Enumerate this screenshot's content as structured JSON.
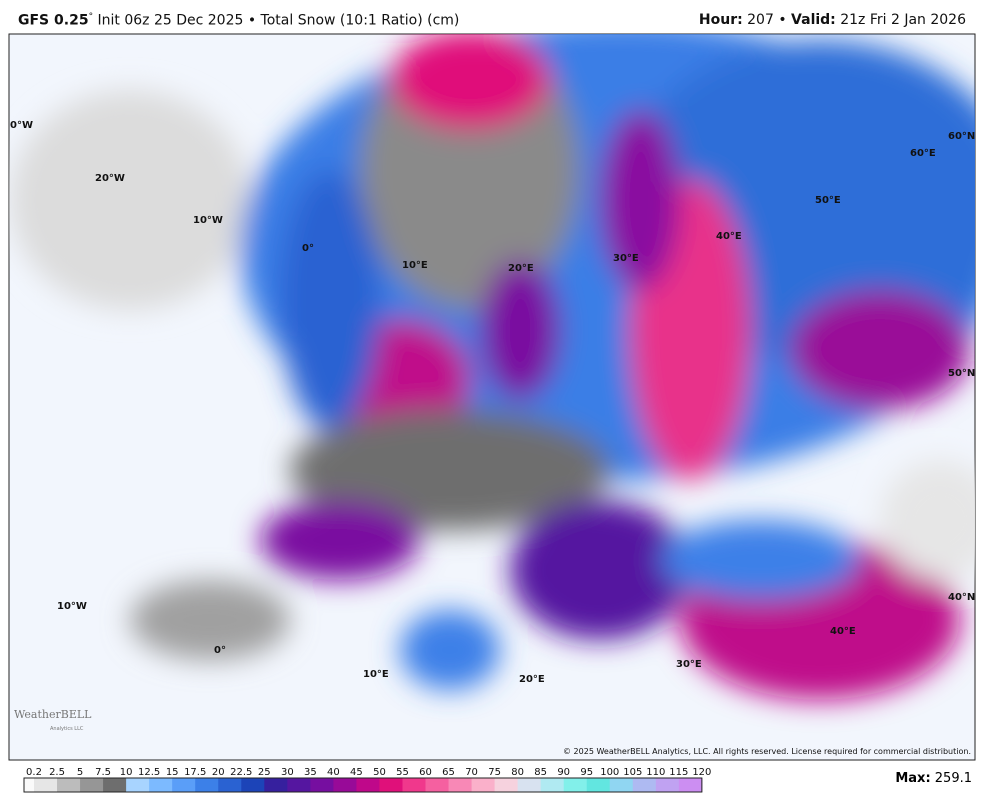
{
  "header": {
    "model": "GFS 0.25",
    "degree": "°",
    "description": " Init 06z 25 Dec 2025 • Total Snow (10:1 Ratio) (cm)",
    "hour_label": "Hour:",
    "hour_value": " 207 • ",
    "valid_label": "Valid:",
    "valid_value": " 21z Fri 2 Jan 2026"
  },
  "map": {
    "grid_labels": [
      "0°W",
      "20°W",
      "10°W",
      "0°",
      "10°E",
      "20°E",
      "30°E",
      "40°E",
      "50°E",
      "60°E",
      "60°N",
      "50°N",
      "40°N",
      "40°E",
      "30°E",
      "20°E",
      "10°E",
      "0°",
      "10°W"
    ],
    "logo": "WeatherBELL",
    "logo_sub": "Analytics LLC",
    "copyright": "© 2025 WeatherBELL Analytics, LLC. All rights reserved. License required for commercial distribution."
  },
  "colorbar": {
    "labels": [
      "0.2",
      "2.5",
      "5",
      "7.5",
      "10",
      "12.5",
      "15",
      "17.5",
      "20",
      "22.5",
      "25",
      "30",
      "35",
      "40",
      "45",
      "50",
      "55",
      "60",
      "65",
      "70",
      "75",
      "80",
      "85",
      "90",
      "95",
      "100",
      "105",
      "110",
      "115",
      "120"
    ],
    "colors": [
      "#e6e6e6",
      "#bcbcbc",
      "#969696",
      "#6e6e6e",
      "#a8d4ff",
      "#7cbaff",
      "#5a9ef8",
      "#3c80e8",
      "#2a62d2",
      "#1c44b8",
      "#36209e",
      "#5516a0",
      "#760ea0",
      "#980a98",
      "#bf088a",
      "#e0107a",
      "#f0388c",
      "#f560a0",
      "#f888b6",
      "#fab0ca",
      "#f6d2de",
      "#d8e2f0",
      "#b0eaf2",
      "#82f0ea",
      "#62e6e0",
      "#90d6f2",
      "#aebaf2",
      "#c0a2f2",
      "#cc8ef2"
    ]
  },
  "footer": {
    "max_label": "Max:",
    "max_value": " 259.1"
  }
}
